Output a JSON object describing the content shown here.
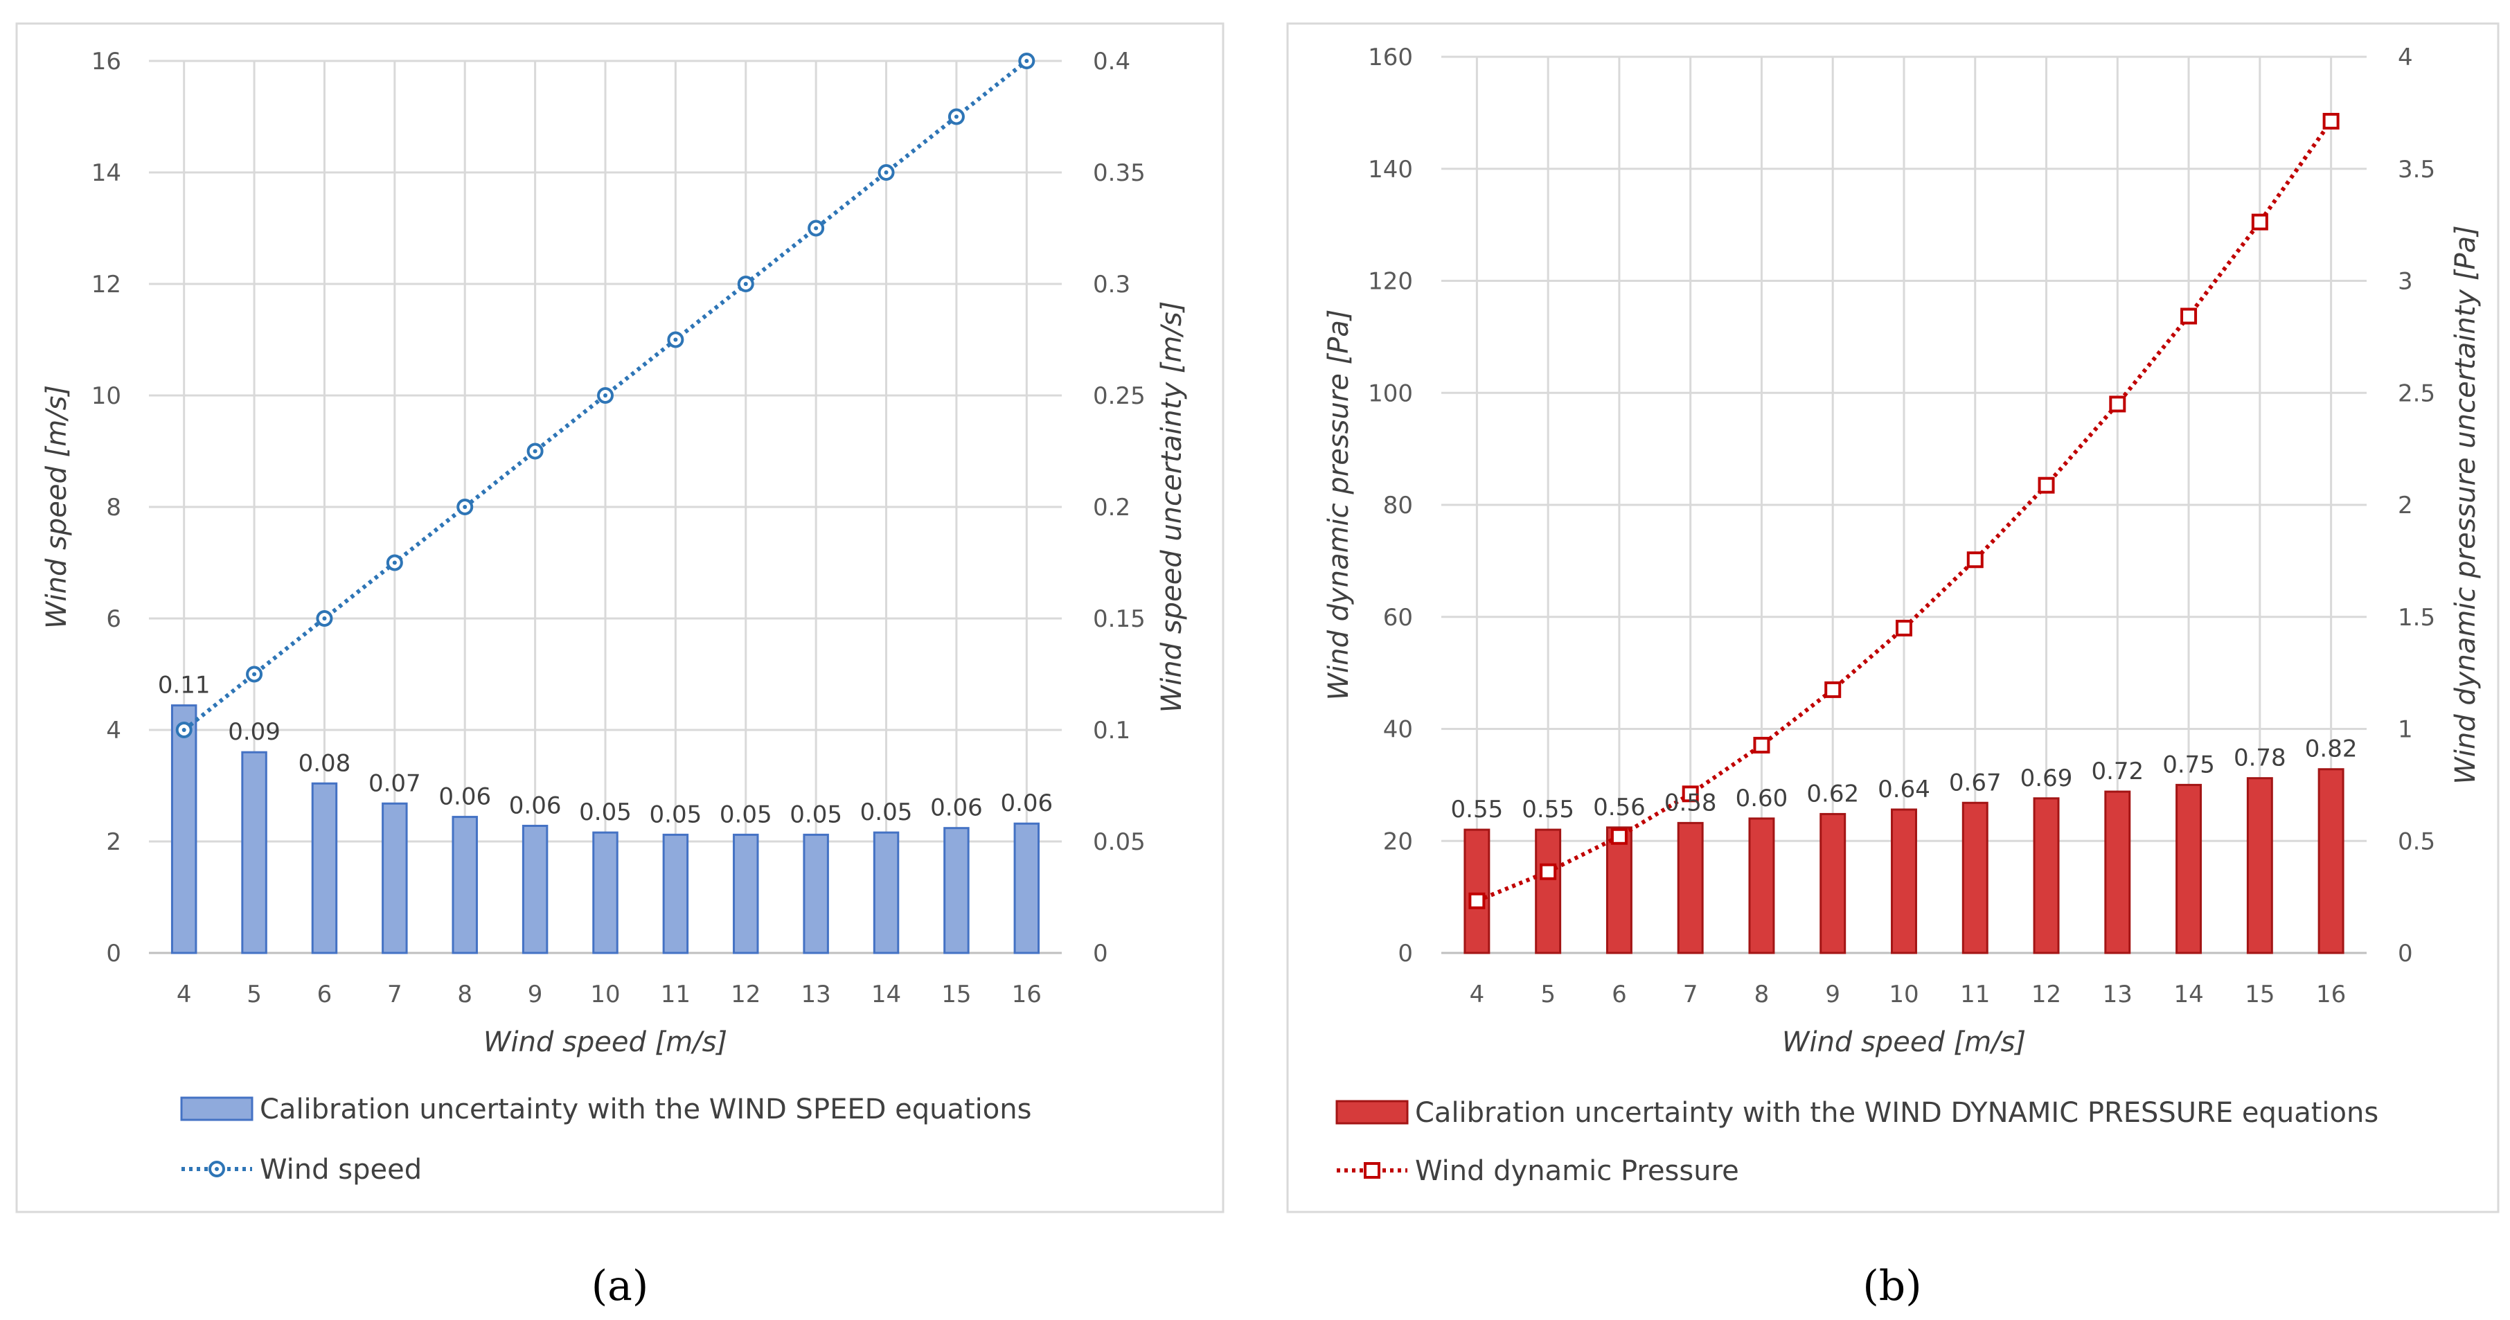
{
  "chart_data": [
    {
      "type": "bar+line",
      "panel_caption": "(a)",
      "categories": [
        "4",
        "5",
        "6",
        "7",
        "8",
        "9",
        "10",
        "11",
        "12",
        "13",
        "14",
        "15",
        "16"
      ],
      "xlabel": "Wind speed  [m/s]",
      "ylabel_left": "Wind speed  [m/s]",
      "ylabel_right": "Wind speed uncertainty  [m/s]",
      "ylim_left": [
        0,
        16
      ],
      "yticks_left": [
        0,
        2,
        4,
        6,
        8,
        10,
        12,
        14,
        16
      ],
      "ytick_labels_left": [
        "0",
        "2",
        "4",
        "6",
        "8",
        "10",
        "12",
        "14",
        "16"
      ],
      "ylim_right": [
        0,
        0.4
      ],
      "yticks_right": [
        0,
        0.05,
        0.1,
        0.15,
        0.2,
        0.25,
        0.3,
        0.35,
        0.4
      ],
      "ytick_labels_right": [
        "0",
        "0.05",
        "0.1",
        "0.15",
        "0.2",
        "0.25",
        "0.3",
        "0.35",
        "0.4"
      ],
      "grid": true,
      "bar_series": {
        "name": "Calibration uncertainty with the WIND SPEED equations",
        "axis": "right",
        "values": [
          0.111,
          0.09,
          0.076,
          0.067,
          0.061,
          0.057,
          0.054,
          0.053,
          0.053,
          0.053,
          0.054,
          0.056,
          0.058
        ],
        "labels": [
          "0.11",
          "0.09",
          "0.08",
          "0.07",
          "0.06",
          "0.06",
          "0.05",
          "0.05",
          "0.05",
          "0.05",
          "0.05",
          "0.06",
          "0.06"
        ],
        "color": "#8FAADC",
        "edge": "#4472C4"
      },
      "line_series": {
        "name": "Wind speed",
        "axis": "left",
        "values": [
          4,
          5,
          6,
          7,
          8,
          9,
          10,
          11,
          12,
          13,
          14,
          15,
          16
        ],
        "marker": "circle",
        "color": "#2E75B6"
      },
      "legend_position": "bottom"
    },
    {
      "type": "bar+line",
      "panel_caption": "(b)",
      "categories": [
        "4",
        "5",
        "6",
        "7",
        "8",
        "9",
        "10",
        "11",
        "12",
        "13",
        "14",
        "15",
        "16"
      ],
      "xlabel": "Wind speed  [m/s]",
      "ylabel_left": "Wind dynamic pressure  [Pa]",
      "ylabel_right": "Wind dynamic pressure uncertainty  [Pa]",
      "ylim_left": [
        0,
        160
      ],
      "yticks_left": [
        0,
        20,
        40,
        60,
        80,
        100,
        120,
        140,
        160
      ],
      "ytick_labels_left": [
        "0",
        "20",
        "40",
        "60",
        "80",
        "100",
        "120",
        "140",
        "160"
      ],
      "ylim_right": [
        0,
        4
      ],
      "yticks_right": [
        0,
        0.5,
        1,
        1.5,
        2,
        2.5,
        3,
        3.5,
        4
      ],
      "ytick_labels_right": [
        "0",
        "0.5",
        "1",
        "1.5",
        "2",
        "2.5",
        "3",
        "3.5",
        "4"
      ],
      "grid": true,
      "bar_series": {
        "name": "Calibration uncertainty with the WIND DYNAMIC PRESSURE equations",
        "axis": "right",
        "values": [
          0.55,
          0.55,
          0.56,
          0.58,
          0.6,
          0.62,
          0.64,
          0.67,
          0.69,
          0.72,
          0.75,
          0.78,
          0.82
        ],
        "labels": [
          "0.55",
          "0.55",
          "0.56",
          "0.58",
          "0.60",
          "0.62",
          "0.64",
          "0.67",
          "0.69",
          "0.72",
          "0.75",
          "0.78",
          "0.82"
        ],
        "color": "#D63B3B",
        "edge": "#A31515"
      },
      "line_series": {
        "name": "Wind dynamic Pressure",
        "axis": "left",
        "values": [
          9.3,
          14.5,
          20.8,
          28.4,
          37.1,
          47.0,
          58.0,
          70.2,
          83.5,
          98.0,
          113.7,
          130.5,
          148.5
        ],
        "marker": "square",
        "color": "#C00000"
      },
      "legend_position": "bottom"
    }
  ]
}
